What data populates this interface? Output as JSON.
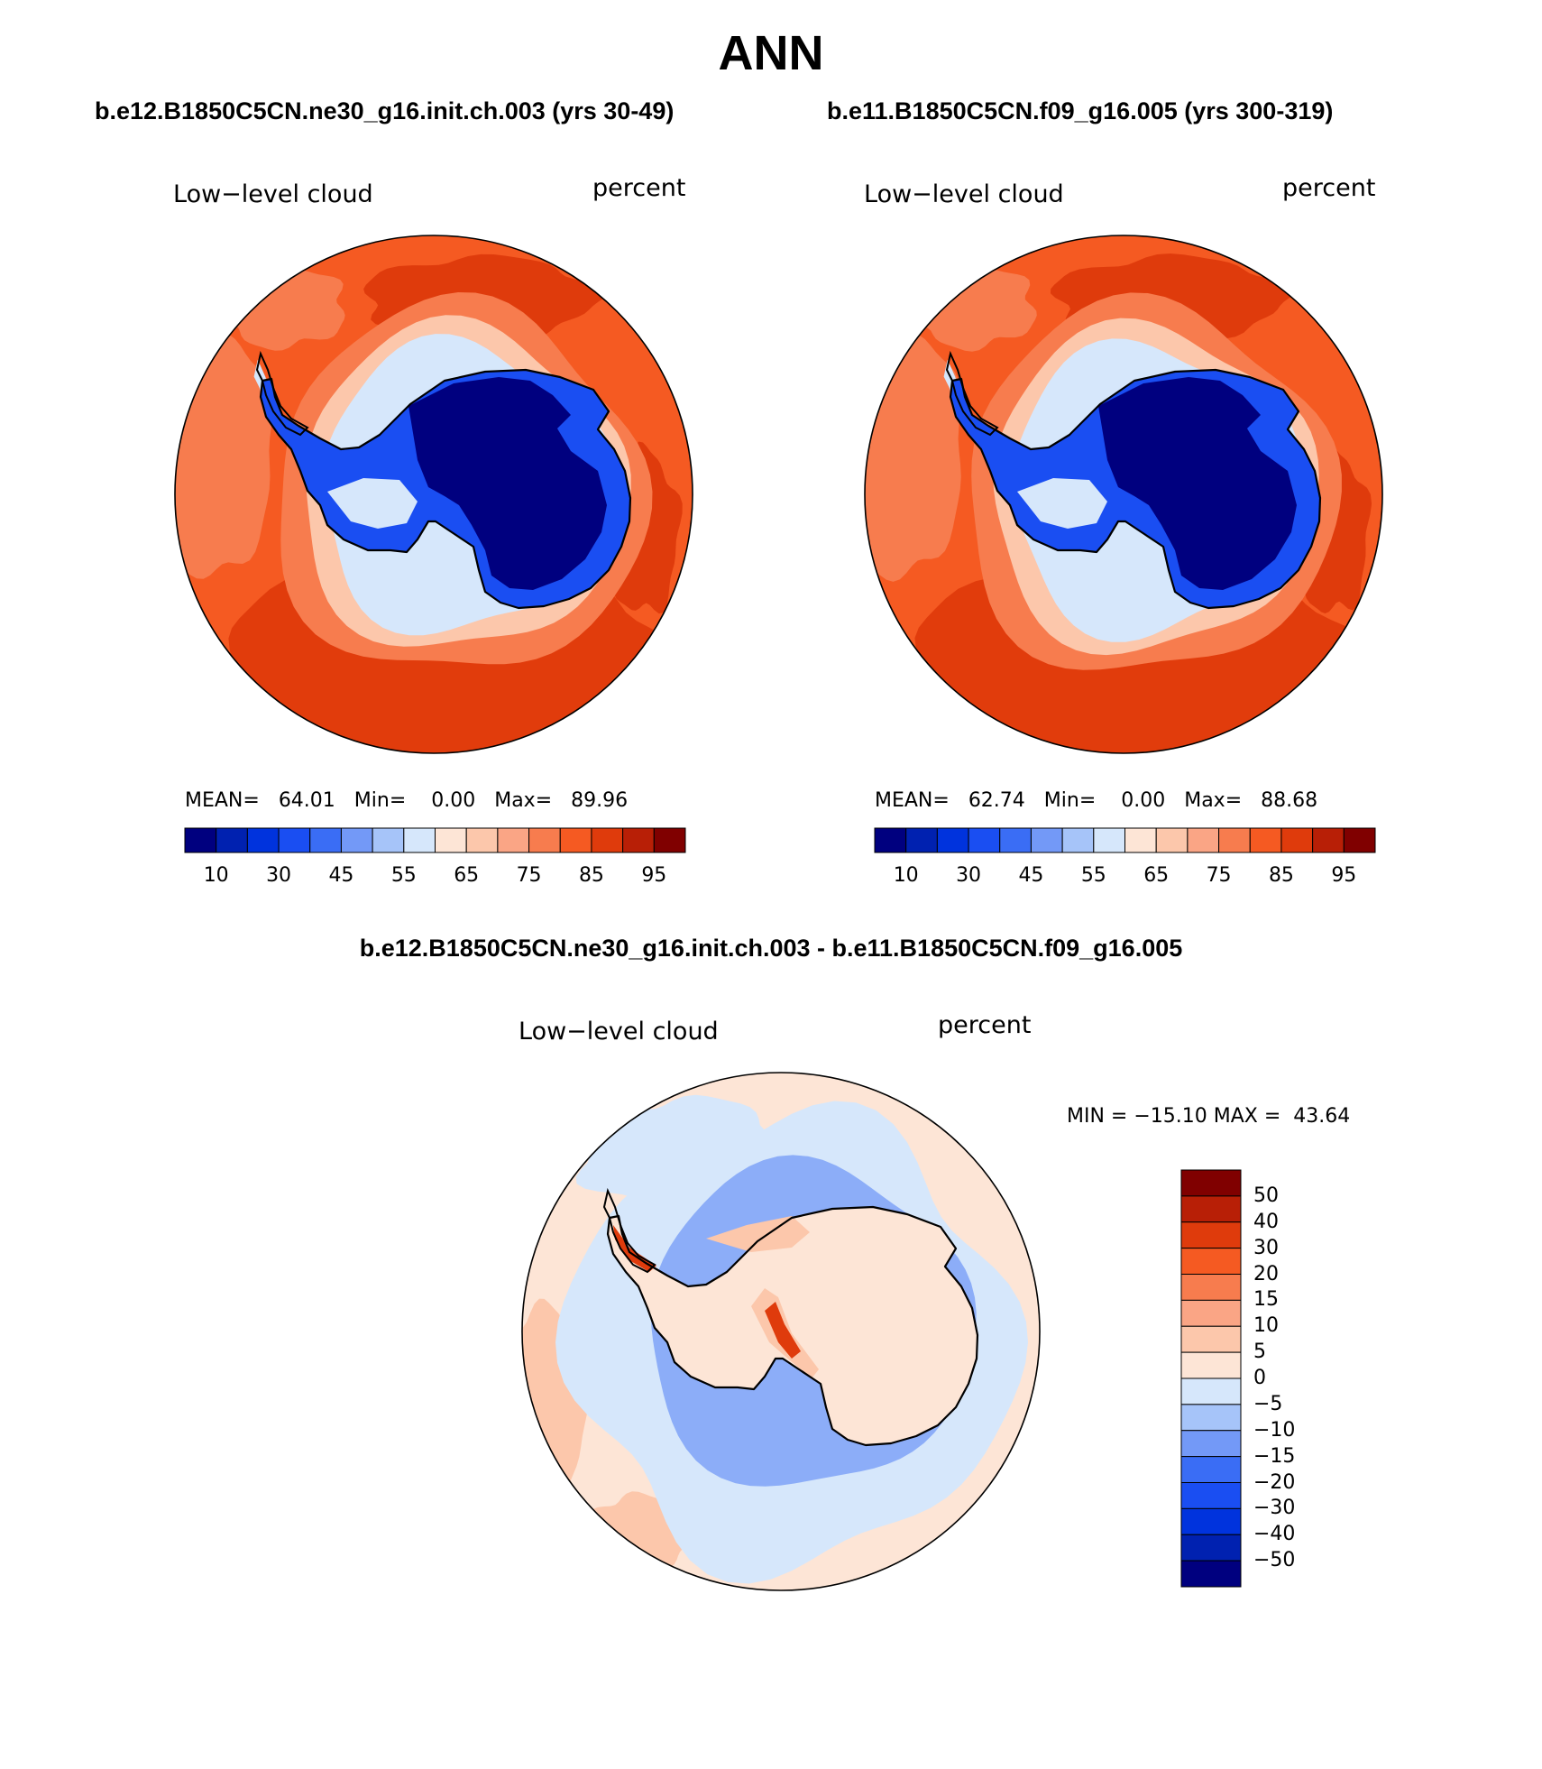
{
  "title": "ANN",
  "variable_label": "Low−level cloud",
  "units_label": "percent",
  "panels": [
    {
      "case": "b.e12.B1850C5CN.ne30_g16.init.ch.003 (yrs 30-49)",
      "stats": {
        "mean_label": "MEAN=",
        "mean": "64.01",
        "min_label": "Min=",
        "min": "0.00",
        "max_label": "Max=",
        "max": "89.96"
      }
    },
    {
      "case": "b.e11.B1850C5CN.f09_g16.005 (yrs 300-319)",
      "stats": {
        "mean_label": "MEAN=",
        "mean": "62.74",
        "min_label": "Min=",
        "min": "0.00",
        "max_label": "Max=",
        "max": "88.68"
      }
    },
    {
      "case": "b.e12.B1850C5CN.ne30_g16.init.ch.003 - b.e11.B1850C5CN.f09_g16.005",
      "stats_text": "MIN = −15.10 MAX =  43.64"
    }
  ],
  "colorbar_abs": {
    "colors": [
      "#00007f",
      "#0021b0",
      "#0033dd",
      "#1a4ef2",
      "#3a6df5",
      "#7399f7",
      "#a6c4f9",
      "#d6e7fb",
      "#fde5d6",
      "#fcc7ab",
      "#faa585",
      "#f77c4e",
      "#f55a22",
      "#df3b0c",
      "#b81f06",
      "#800000"
    ],
    "tick_labels": [
      "10",
      "30",
      "45",
      "55",
      "65",
      "75",
      "85",
      "95"
    ]
  },
  "colorbar_diff": {
    "colors": [
      "#800000",
      "#b81f06",
      "#df3b0c",
      "#f55a22",
      "#f77c4e",
      "#faa585",
      "#fcc7ab",
      "#fde5d6",
      "#d6e7fb",
      "#a6c4f9",
      "#7399f7",
      "#3a6df5",
      "#1a4ef2",
      "#0033dd",
      "#0021b0",
      "#00007f"
    ],
    "tick_labels": [
      "50",
      "40",
      "30",
      "20",
      "15",
      "10",
      "5",
      "0",
      "−5",
      "−10",
      "−15",
      "−20",
      "−30",
      "−40",
      "−50"
    ]
  },
  "colors": {
    "ocean_abs": "#f55a22",
    "ocean_high": "#df3b0c",
    "ocean_mid": "#f77c4e",
    "ice_edge": "#fcc7ab",
    "coast_light": "#d6e7fb",
    "plateau_mid": "#1a4ef2",
    "plateau_core": "#00007f",
    "diff_background": "#fde5d6",
    "diff_negative": "#d6e7fb",
    "diff_negative_strong": "#7399f7",
    "diff_positive": "#fcc7ab",
    "diff_positive_strong": "#df3b0c"
  }
}
